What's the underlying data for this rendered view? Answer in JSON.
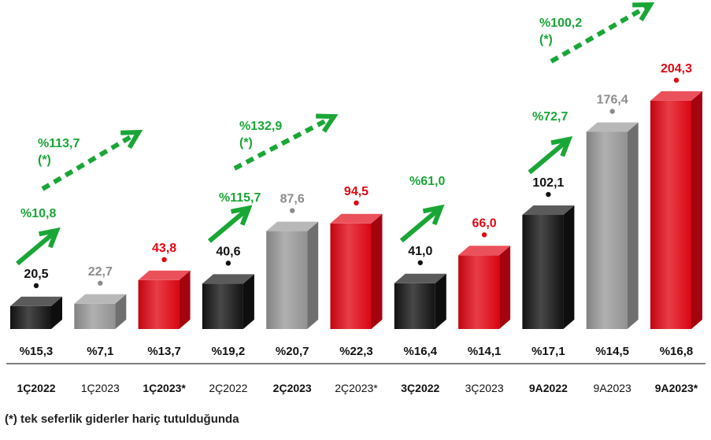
{
  "chart_data": {
    "type": "bar",
    "title": "",
    "xlabel": "",
    "ylabel": "",
    "ylim": [
      0,
      210
    ],
    "grid": false,
    "categories": [
      "1Ç2022",
      "1Ç2023",
      "1Ç2023*",
      "2Ç2022",
      "2Ç2023",
      "2Ç2023*",
      "3Ç2022",
      "3Ç2023",
      "9A2022",
      "9A2023",
      "9A2023*"
    ],
    "category_bold": [
      true,
      false,
      true,
      false,
      true,
      false,
      true,
      false,
      true,
      false,
      true
    ],
    "values": [
      20.5,
      22.7,
      43.8,
      40.6,
      87.6,
      94.5,
      41.0,
      66.0,
      102.1,
      176.4,
      204.3
    ],
    "value_labels": [
      "20,5",
      "22,7",
      "43,8",
      "40,6",
      "87,6",
      "94,5",
      "41,0",
      "66,0",
      "102,1",
      "176,4",
      "204,3"
    ],
    "bar_colors": [
      "black",
      "gray",
      "red",
      "black",
      "gray",
      "red",
      "black",
      "red",
      "black",
      "gray",
      "red"
    ],
    "percent_labels": [
      "%15,3",
      "%7,1",
      "%13,7",
      "%19,2",
      "%20,7",
      "%22,3",
      "%16,4",
      "%14,1",
      "%17,1",
      "%14,5",
      "%16,8"
    ],
    "growth_annotations": [
      {
        "text": "%10,8",
        "from": 0,
        "to": 1,
        "style": "solid"
      },
      {
        "text": "%113,7",
        "note": "(*)",
        "from": 0,
        "to": 2,
        "style": "dashed"
      },
      {
        "text": "%115,7",
        "from": 3,
        "to": 4,
        "style": "solid"
      },
      {
        "text": "%132,9",
        "note": "(*)",
        "from": 3,
        "to": 5,
        "style": "dashed"
      },
      {
        "text": "%61,0",
        "from": 6,
        "to": 7,
        "style": "solid"
      },
      {
        "text": "%72,7",
        "from": 8,
        "to": 9,
        "style": "solid"
      },
      {
        "text": "%100,2",
        "note": "(*)",
        "from": 8,
        "to": 10,
        "style": "dashed"
      }
    ]
  },
  "colors": {
    "black": "#141414",
    "gray": "#9a9a9a",
    "red": "#e30613",
    "green": "#1aa637",
    "label_black": "#111111",
    "label_gray": "#8c8c8c",
    "label_red": "#e30613",
    "axis": "#333333"
  },
  "footnote": {
    "mark": "(*)",
    "text": " tek seferlik giderler hariç tutulduğunda"
  }
}
